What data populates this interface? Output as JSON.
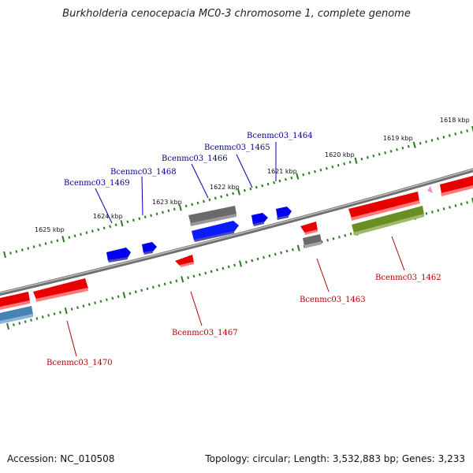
{
  "header": {
    "title": "Burkholderia cenocepacia MC0-3 chromosome 1, complete genome"
  },
  "footer": {
    "accession": "Accession: NC_010508",
    "summary": "Topology: circular; Length: 3,532,883 bp; Genes: 3,233"
  },
  "colors": {
    "backbone": "#808080",
    "scale_ticks": "#2a7a1f",
    "plus_label": "#00008b",
    "minus_label": "#b00000"
  },
  "ruler_labels": [
    {
      "text": "1618 kbp"
    },
    {
      "text": "1619 kbp"
    },
    {
      "text": "1620 kbp"
    },
    {
      "text": "1621 kbp"
    },
    {
      "text": "1622 kbp"
    },
    {
      "text": "1623 kbp"
    },
    {
      "text": "1624 kbp"
    },
    {
      "text": "1625 kbp"
    }
  ],
  "gene_labels": [
    {
      "text": "Bcenmc03_1464",
      "strand": "plus"
    },
    {
      "text": "Bcenmc03_1465",
      "strand": "plus"
    },
    {
      "text": "Bcenmc03_1466",
      "strand": "plus"
    },
    {
      "text": "Bcenmc03_1468",
      "strand": "plus"
    },
    {
      "text": "Bcenmc03_1469",
      "strand": "plus"
    },
    {
      "text": "Bcenmc03_1462",
      "strand": "minus"
    },
    {
      "text": "Bcenmc03_1463",
      "strand": "minus"
    },
    {
      "text": "Bcenmc03_1467",
      "strand": "minus"
    },
    {
      "text": "Bcenmc03_1470",
      "strand": "minus"
    }
  ]
}
